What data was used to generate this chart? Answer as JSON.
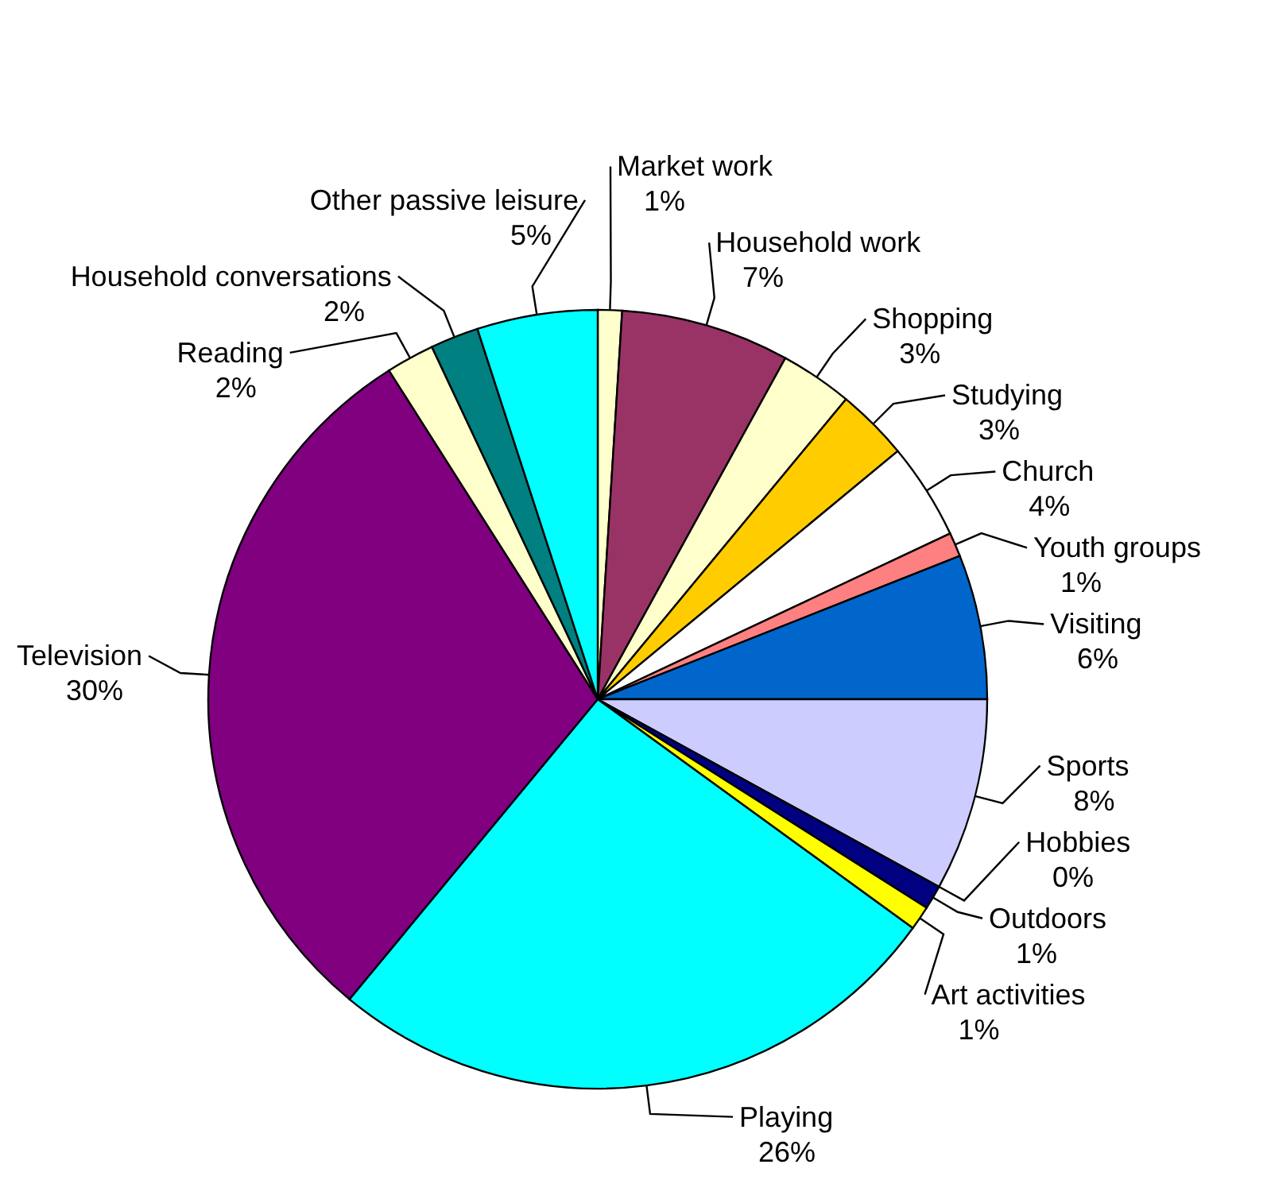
{
  "chart_data": {
    "type": "pie",
    "categories": [
      "Market work",
      "Household work",
      "Shopping",
      "Studying",
      "Church",
      "Youth groups",
      "Visiting",
      "Sports",
      "Hobbies",
      "Outdoors",
      "Art activities",
      "Playing",
      "Television",
      "Reading",
      "Household conversations",
      "Other passive leisure"
    ],
    "values": [
      1,
      7,
      3,
      3,
      4,
      1,
      6,
      8,
      0,
      1,
      1,
      26,
      30,
      2,
      2,
      5
    ],
    "value_labels": [
      "1%",
      "7%",
      "3%",
      "3%",
      "4%",
      "1%",
      "6%",
      "8%",
      "0%",
      "1%",
      "1%",
      "26%",
      "30%",
      "2%",
      "2%",
      "5%"
    ],
    "colors": [
      "#ffffcc",
      "#993366",
      "#ffffcc",
      "#ffcc00",
      "#ffffff",
      "#ff8080",
      "#0066cc",
      "#ccccff",
      "#000080",
      "#000080",
      "#ffff00",
      "#00ffff",
      "#800080",
      "#ffffcc",
      "#008080",
      "#00ffff"
    ]
  }
}
